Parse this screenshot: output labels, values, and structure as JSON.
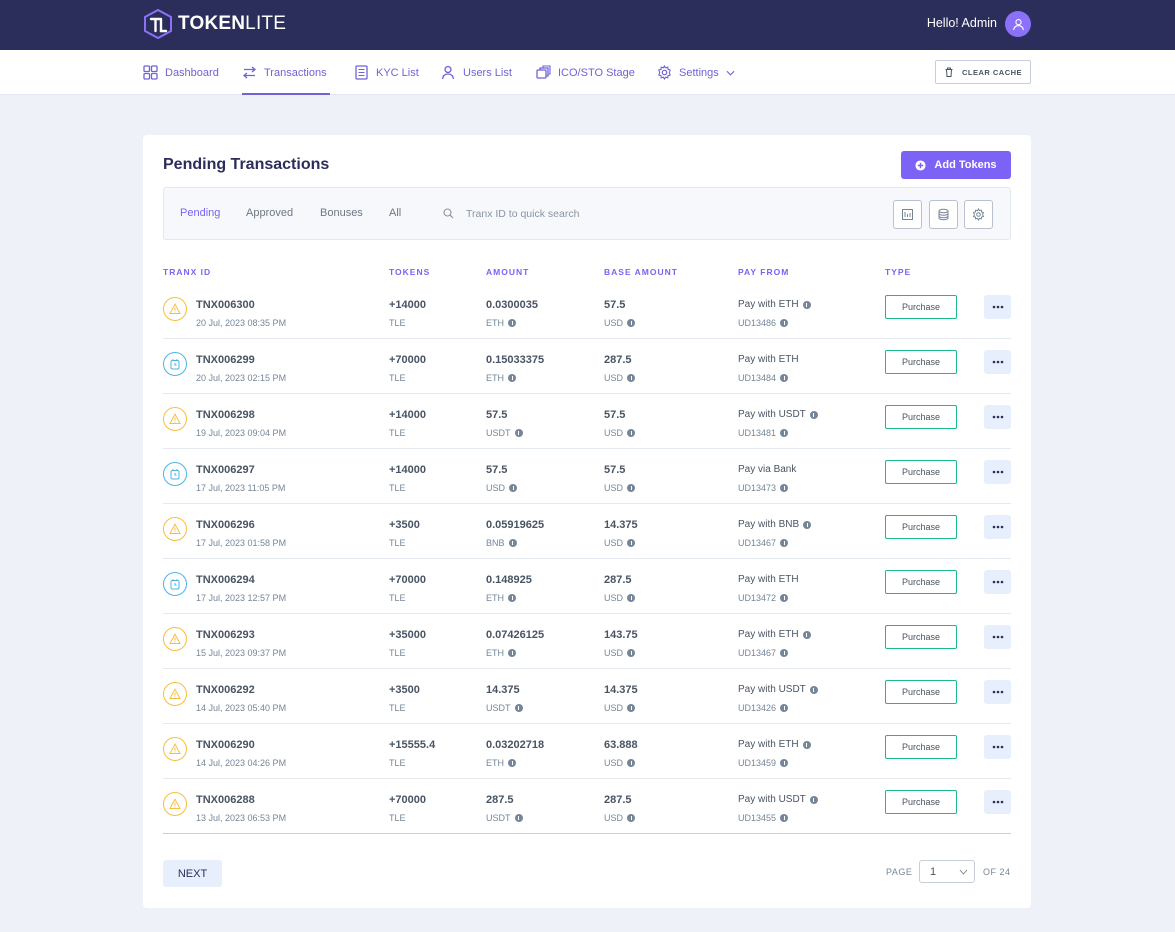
{
  "brand": {
    "name_bold": "TOKEN",
    "name_light": "LITE"
  },
  "header": {
    "greeting": "Hello! Admin"
  },
  "nav": {
    "items": [
      {
        "label": "Dashboard"
      },
      {
        "label": "Transactions"
      },
      {
        "label": "KYC List"
      },
      {
        "label": "Users List"
      },
      {
        "label": "ICO/STO Stage"
      },
      {
        "label": "Settings"
      }
    ],
    "clear_cache": "CLEAR CACHE"
  },
  "page": {
    "title": "Pending Transactions",
    "add_tokens": "Add Tokens"
  },
  "filters": {
    "tabs": [
      "Pending",
      "Approved",
      "Bonuses",
      "All"
    ],
    "search_placeholder": "Tranx ID to quick search"
  },
  "table": {
    "headers": [
      "TRANX ID",
      "TOKENS",
      "AMOUNT",
      "BASE AMOUNT",
      "PAY FROM",
      "TYPE"
    ],
    "rows": [
      {
        "status": "warning",
        "id": "TNX006300",
        "date": "20 Jul, 2023 08:35 PM",
        "tokens": "+14000",
        "token_sym": "TLE",
        "amount": "0.0300035",
        "amount_cur": "ETH",
        "base": "57.5",
        "base_cur": "USD",
        "pay": "Pay with ETH",
        "pay_info": true,
        "user": "UD13486",
        "type": "Purchase"
      },
      {
        "status": "pending",
        "id": "TNX006299",
        "date": "20 Jul, 2023 02:15 PM",
        "tokens": "+70000",
        "token_sym": "TLE",
        "amount": "0.15033375",
        "amount_cur": "ETH",
        "base": "287.5",
        "base_cur": "USD",
        "pay": "Pay with ETH",
        "pay_info": false,
        "user": "UD13484",
        "type": "Purchase"
      },
      {
        "status": "warning",
        "id": "TNX006298",
        "date": "19 Jul, 2023 09:04 PM",
        "tokens": "+14000",
        "token_sym": "TLE",
        "amount": "57.5",
        "amount_cur": "USDT",
        "base": "57.5",
        "base_cur": "USD",
        "pay": "Pay with USDT",
        "pay_info": true,
        "user": "UD13481",
        "type": "Purchase"
      },
      {
        "status": "pending",
        "id": "TNX006297",
        "date": "17 Jul, 2023 11:05 PM",
        "tokens": "+14000",
        "token_sym": "TLE",
        "amount": "57.5",
        "amount_cur": "USD",
        "base": "57.5",
        "base_cur": "USD",
        "pay": "Pay via Bank",
        "pay_info": false,
        "user": "UD13473",
        "type": "Purchase"
      },
      {
        "status": "warning",
        "id": "TNX006296",
        "date": "17 Jul, 2023 01:58 PM",
        "tokens": "+3500",
        "token_sym": "TLE",
        "amount": "0.05919625",
        "amount_cur": "BNB",
        "base": "14.375",
        "base_cur": "USD",
        "pay": "Pay with BNB",
        "pay_info": true,
        "user": "UD13467",
        "type": "Purchase"
      },
      {
        "status": "pending",
        "id": "TNX006294",
        "date": "17 Jul, 2023 12:57 PM",
        "tokens": "+70000",
        "token_sym": "TLE",
        "amount": "0.148925",
        "amount_cur": "ETH",
        "base": "287.5",
        "base_cur": "USD",
        "pay": "Pay with ETH",
        "pay_info": false,
        "user": "UD13472",
        "type": "Purchase"
      },
      {
        "status": "warning",
        "id": "TNX006293",
        "date": "15 Jul, 2023 09:37 PM",
        "tokens": "+35000",
        "token_sym": "TLE",
        "amount": "0.07426125",
        "amount_cur": "ETH",
        "base": "143.75",
        "base_cur": "USD",
        "pay": "Pay with ETH",
        "pay_info": true,
        "user": "UD13467",
        "type": "Purchase"
      },
      {
        "status": "warning",
        "id": "TNX006292",
        "date": "14 Jul, 2023 05:40 PM",
        "tokens": "+3500",
        "token_sym": "TLE",
        "amount": "14.375",
        "amount_cur": "USDT",
        "base": "14.375",
        "base_cur": "USD",
        "pay": "Pay with USDT",
        "pay_info": true,
        "user": "UD13426",
        "type": "Purchase"
      },
      {
        "status": "warning",
        "id": "TNX006290",
        "date": "14 Jul, 2023 04:26 PM",
        "tokens": "+15555.4",
        "token_sym": "TLE",
        "amount": "0.03202718",
        "amount_cur": "ETH",
        "base": "63.888",
        "base_cur": "USD",
        "pay": "Pay with ETH",
        "pay_info": true,
        "user": "UD13459",
        "type": "Purchase"
      },
      {
        "status": "warning",
        "id": "TNX006288",
        "date": "13 Jul, 2023 06:53 PM",
        "tokens": "+70000",
        "token_sym": "TLE",
        "amount": "287.5",
        "amount_cur": "USDT",
        "base": "287.5",
        "base_cur": "USD",
        "pay": "Pay with USDT",
        "pay_info": true,
        "user": "UD13455",
        "type": "Purchase"
      }
    ]
  },
  "pagination": {
    "next": "NEXT",
    "page_label": "PAGE",
    "current": "1",
    "of_label": "OF 24"
  },
  "colors": {
    "topbar": "#2b2e5a",
    "accent": "#7c62f5",
    "warning": "#f8bd3e",
    "pending": "#4cb4e7",
    "success_border": "#1bb88b"
  }
}
